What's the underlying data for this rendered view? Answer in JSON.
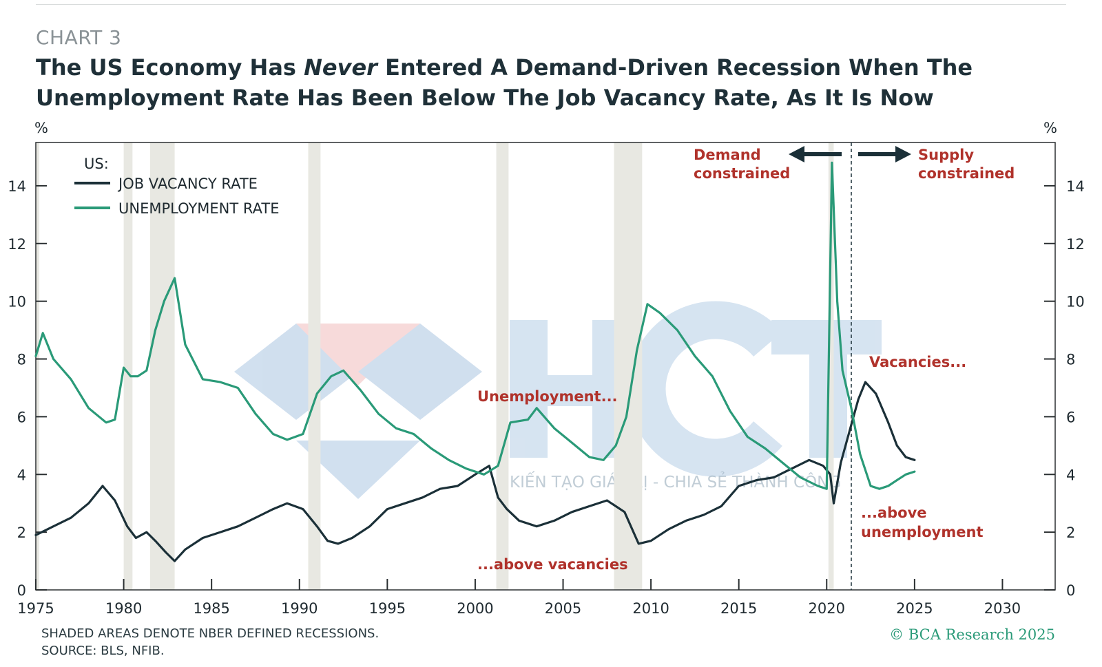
{
  "header": {
    "chart_label": "CHART 3",
    "title_part1": "The US Economy Has ",
    "title_emph": "Never",
    "title_part2": " Entered A Demand-Driven Recession When The Unemployment Rate Has Been Below The Job Vacancy Rate, As It Is Now"
  },
  "footer": {
    "note": "SHADED AREAS DENOTE NBER DEFINED RECESSIONS.",
    "source": "SOURCE: BLS, NFIB.",
    "copyright": "© BCA Research 2025"
  },
  "watermark": {
    "text": "KIẾN TẠO GIÁ TRỊ - CHIA SẺ THÀNH CÔNG"
  },
  "colors": {
    "vacancy": "#1b3038",
    "unemployment": "#2a9a78",
    "annotation": "#b0322b",
    "recession": "#e8e8e2"
  },
  "chart_data": {
    "type": "line",
    "unit_left": "%",
    "unit_right": "%",
    "xlim": [
      1975,
      2033
    ],
    "ylim": [
      0,
      15.5
    ],
    "x_ticks": [
      1975,
      1980,
      1985,
      1990,
      1995,
      2000,
      2005,
      2010,
      2015,
      2020,
      2025,
      2030
    ],
    "y_ticks": [
      0,
      2,
      4,
      6,
      8,
      10,
      12,
      14
    ],
    "legend": {
      "title": "US:",
      "position": "top-left"
    },
    "recessions": [
      [
        1975.0,
        1975.2
      ],
      [
        1980.0,
        1980.5
      ],
      [
        1981.5,
        1982.9
      ],
      [
        1990.5,
        1991.2
      ],
      [
        2001.2,
        2001.9
      ],
      [
        2007.9,
        2009.5
      ],
      [
        2020.1,
        2020.4
      ]
    ],
    "divider_x": 2021.4,
    "series": [
      {
        "name": "JOB VACANCY RATE",
        "x": [
          1975,
          1976,
          1977,
          1978,
          1978.8,
          1979.5,
          1980.2,
          1980.7,
          1981.3,
          1981.8,
          1982.4,
          1982.9,
          1983.5,
          1984.5,
          1985.5,
          1986.5,
          1987.5,
          1988.5,
          1989.3,
          1990.2,
          1991,
          1991.6,
          1992.2,
          1993,
          1994,
          1995,
          1996,
          1997,
          1998,
          1999,
          2000,
          2000.8,
          2001.3,
          2001.8,
          2002.5,
          2003.5,
          2004.5,
          2005.5,
          2006.5,
          2007.5,
          2008.5,
          2009.3,
          2010,
          2011,
          2012,
          2013,
          2014,
          2015,
          2016,
          2017,
          2018,
          2019,
          2019.8,
          2020.2,
          2020.4,
          2020.8,
          2021.3,
          2021.8,
          2022.2,
          2022.8,
          2023.5,
          2024,
          2024.5,
          2025
        ],
        "values": [
          1.9,
          2.2,
          2.5,
          3.0,
          3.6,
          3.1,
          2.2,
          1.8,
          2.0,
          1.7,
          1.3,
          1.0,
          1.4,
          1.8,
          2.0,
          2.2,
          2.5,
          2.8,
          3.0,
          2.8,
          2.2,
          1.7,
          1.6,
          1.8,
          2.2,
          2.8,
          3.0,
          3.2,
          3.5,
          3.6,
          4.0,
          4.3,
          3.2,
          2.8,
          2.4,
          2.2,
          2.4,
          2.7,
          2.9,
          3.1,
          2.7,
          1.6,
          1.7,
          2.1,
          2.4,
          2.6,
          2.9,
          3.6,
          3.8,
          3.9,
          4.2,
          4.5,
          4.3,
          4.0,
          3.0,
          4.4,
          5.5,
          6.6,
          7.2,
          6.8,
          5.8,
          5.0,
          4.6,
          4.5
        ]
      },
      {
        "name": "UNEMPLOYMENT RATE",
        "x": [
          1975,
          1975.4,
          1976,
          1977,
          1978,
          1979,
          1979.5,
          1980,
          1980.4,
          1980.8,
          1981.3,
          1981.8,
          1982.3,
          1982.9,
          1983.5,
          1984.5,
          1985.5,
          1986.5,
          1987.5,
          1988.5,
          1989.3,
          1990.2,
          1991,
          1991.8,
          1992.5,
          1993.5,
          1994.5,
          1995.5,
          1996.5,
          1997.5,
          1998.5,
          1999.5,
          2000.5,
          2001.3,
          2002,
          2003,
          2003.5,
          2004.5,
          2005.5,
          2006.5,
          2007.3,
          2008,
          2008.6,
          2009.2,
          2009.8,
          2010.5,
          2011.5,
          2012.5,
          2013.5,
          2014.5,
          2015.5,
          2016.5,
          2017.5,
          2018.5,
          2019.5,
          2020,
          2020.3,
          2020.6,
          2020.9,
          2021.4,
          2021.9,
          2022.5,
          2023,
          2023.5,
          2024,
          2024.5,
          2025
        ],
        "values": [
          8.1,
          8.9,
          8.0,
          7.3,
          6.3,
          5.8,
          5.9,
          7.7,
          7.4,
          7.4,
          7.6,
          9.0,
          10.0,
          10.8,
          8.5,
          7.3,
          7.2,
          7.0,
          6.1,
          5.4,
          5.2,
          5.4,
          6.8,
          7.4,
          7.6,
          6.9,
          6.1,
          5.6,
          5.4,
          4.9,
          4.5,
          4.2,
          4.0,
          4.3,
          5.8,
          5.9,
          6.3,
          5.6,
          5.1,
          4.6,
          4.5,
          5.0,
          6.0,
          8.3,
          9.9,
          9.6,
          9.0,
          8.1,
          7.4,
          6.2,
          5.3,
          4.9,
          4.4,
          3.9,
          3.6,
          3.5,
          14.8,
          10.0,
          7.6,
          6.3,
          4.7,
          3.6,
          3.5,
          3.6,
          3.8,
          4.0,
          4.1
        ]
      }
    ],
    "annotations": [
      {
        "id": "demand",
        "lines": [
          "Demand",
          "constrained"
        ]
      },
      {
        "id": "supply",
        "lines": [
          "Supply",
          "constrained"
        ]
      },
      {
        "id": "unemp",
        "lines": [
          "Unemployment..."
        ]
      },
      {
        "id": "abovevac",
        "lines": [
          "...above vacancies"
        ]
      },
      {
        "id": "vacancies",
        "lines": [
          "Vacancies..."
        ]
      },
      {
        "id": "aboveunemp",
        "lines": [
          "...above",
          "unemployment"
        ]
      }
    ]
  }
}
